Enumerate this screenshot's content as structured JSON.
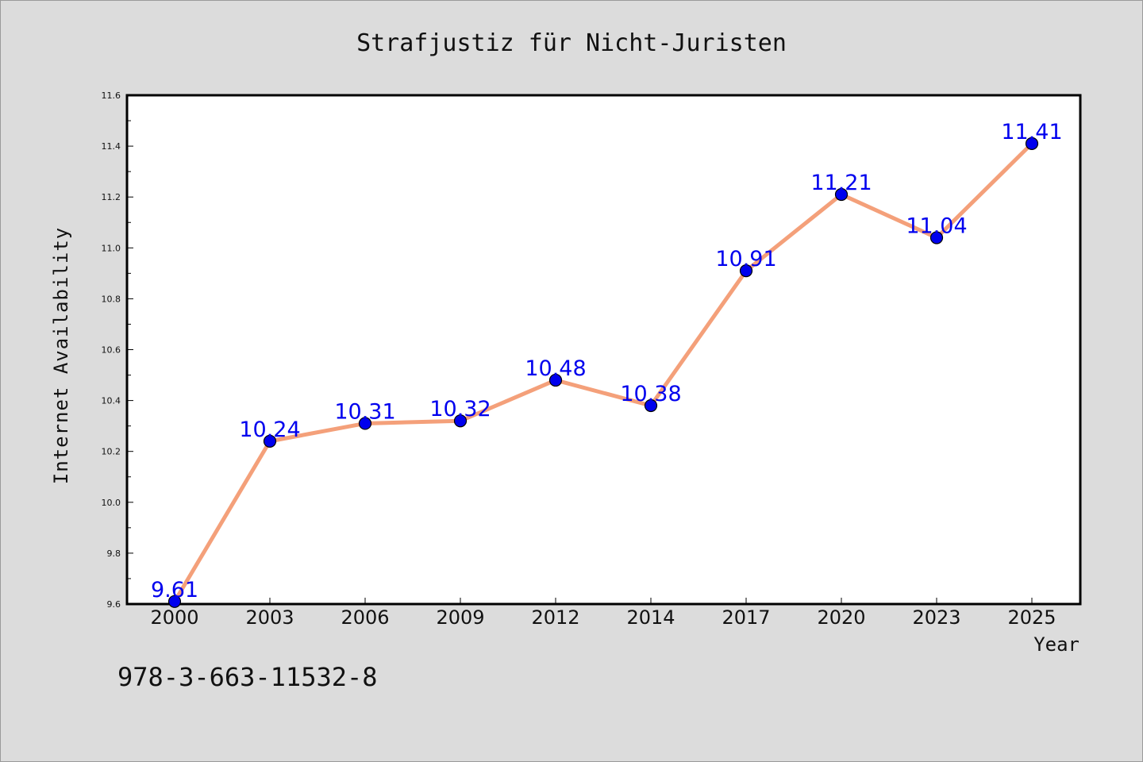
{
  "chart_data": {
    "type": "line",
    "title": "Strafjustiz für Nicht-Juristen",
    "xlabel": "Year",
    "ylabel": "Internet Availability",
    "categories": [
      "2000",
      "2003",
      "2006",
      "2009",
      "2012",
      "2014",
      "2017",
      "2020",
      "2023",
      "2025"
    ],
    "values": [
      9.61,
      10.24,
      10.31,
      10.32,
      10.48,
      10.38,
      10.91,
      11.21,
      11.04,
      11.41
    ],
    "data_labels": [
      "9.61",
      "10.24",
      "10.31",
      "10.32",
      "10.48",
      "10.38",
      "10.91",
      "11.21",
      "11.04",
      "11.41"
    ],
    "ylim": [
      9.6,
      11.6
    ],
    "yticks": [
      "9.6",
      "9.8",
      "10.0",
      "10.2",
      "10.4",
      "10.6",
      "10.8",
      "11.0",
      "11.2",
      "11.4",
      "11.6"
    ],
    "grid": false,
    "line_color": "#f4a07a",
    "marker_color": "#0000ee",
    "label_color": "#0000ee"
  },
  "footer": {
    "isbn": "978-3-663-11532-8"
  }
}
